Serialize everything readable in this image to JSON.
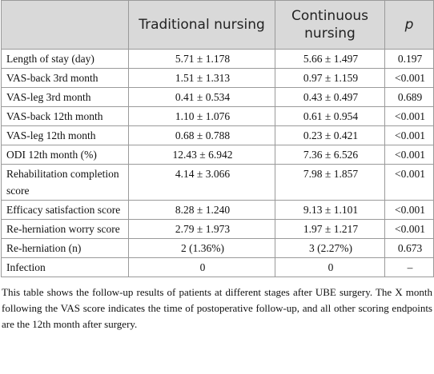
{
  "table": {
    "header": [
      "Traditional nursing",
      "Continuous nursing",
      "p"
    ],
    "rows": [
      [
        "Length of stay (day)",
        "5.71 ± 1.178",
        "5.66 ± 1.497",
        "0.197"
      ],
      [
        "VAS-back 3rd month",
        "1.51 ± 1.313",
        "0.97 ± 1.159",
        "<0.001"
      ],
      [
        "VAS-leg 3rd month",
        "0.41 ± 0.534",
        "0.43 ± 0.497",
        "0.689"
      ],
      [
        "VAS-back 12th month",
        "1.10 ± 1.076",
        "0.61 ± 0.954",
        "<0.001"
      ],
      [
        "VAS-leg 12th month",
        "0.68 ± 0.788",
        "0.23 ± 0.421",
        "<0.001"
      ],
      [
        "ODI 12th month (%)",
        "12.43 ± 6.942",
        "7.36 ± 6.526",
        "<0.001"
      ],
      [
        "Rehabilitation completion score",
        "4.14 ± 3.066",
        "7.98 ± 1.857",
        "<0.001"
      ],
      [
        "Efficacy satisfaction score",
        "8.28 ± 1.240",
        "9.13 ± 1.101",
        "<0.001"
      ],
      [
        "Re-herniation worry score",
        "2.79 ± 1.973",
        "1.97 ± 1.217",
        "<0.001"
      ],
      [
        "Re-herniation (n)",
        "2 (1.36%)",
        "3 (2.27%)",
        "0.673"
      ],
      [
        "Infection",
        "0",
        "0",
        "–"
      ]
    ],
    "note": "This table shows the follow-up results of patients at different stages after UBE surgery. The X month following the VAS score indicates the time of postoperative follow-up, and all other scoring endpoints are the 12th month after surgery."
  }
}
